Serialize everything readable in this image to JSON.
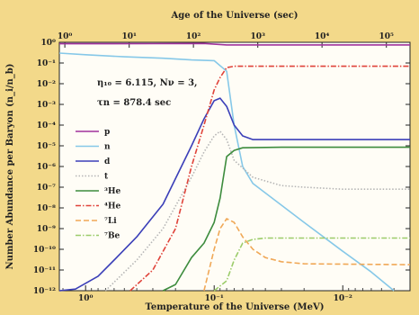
{
  "chart_data": {
    "type": "line",
    "title": "",
    "top_xlabel": "Age of the Universe (sec)",
    "xlabel": "Temperature of the Universe (MeV)",
    "ylabel": "Number Abundance per Baryon (n_i/n_b)",
    "x_scale": "log",
    "y_scale": "log",
    "xlim": [
      1.6,
      0.003
    ],
    "ylim": [
      1e-12,
      1
    ],
    "grid": false,
    "legend_position": "left",
    "bottom_ticks": [
      {
        "value": 1,
        "label": "10⁰"
      },
      {
        "value": 0.1,
        "label": "10⁻¹"
      },
      {
        "value": 0.01,
        "label": "10⁻²"
      }
    ],
    "top_ticks": [
      {
        "value": 1.45,
        "label": "10⁰"
      },
      {
        "value": 0.458,
        "label": "10¹"
      },
      {
        "value": 0.145,
        "label": "10²"
      },
      {
        "value": 0.0458,
        "label": "10³"
      },
      {
        "value": 0.0145,
        "label": "10⁴"
      },
      {
        "value": 0.00458,
        "label": "10⁵"
      }
    ],
    "y_ticks": [
      {
        "value": 1,
        "label": "10⁰"
      },
      {
        "value": 0.1,
        "label": "10⁻¹"
      },
      {
        "value": 0.01,
        "label": "10⁻²"
      },
      {
        "value": 0.001,
        "label": "10⁻³"
      },
      {
        "value": 0.0001,
        "label": "10⁻⁴"
      },
      {
        "value": 1e-05,
        "label": "10⁻⁵"
      },
      {
        "value": 1e-06,
        "label": "10⁻⁶"
      },
      {
        "value": 1e-07,
        "label": "10⁻⁷"
      },
      {
        "value": 1e-08,
        "label": "10⁻⁸"
      },
      {
        "value": 1e-09,
        "label": "10⁻⁹"
      },
      {
        "value": 1e-10,
        "label": "10⁻¹⁰"
      },
      {
        "value": 1e-11,
        "label": "10⁻¹¹"
      },
      {
        "value": 1e-12,
        "label": "10⁻¹²"
      }
    ],
    "annotations": [
      "η₁₀ = 6.115, Nν = 3,",
      "τn = 878.4 sec"
    ],
    "series": [
      {
        "name": "p",
        "color": "#a0329b",
        "dash": "solid",
        "points": [
          [
            1.6,
            0.85
          ],
          [
            0.3,
            0.86
          ],
          [
            0.12,
            0.88
          ],
          [
            0.08,
            0.75
          ],
          [
            0.04,
            0.75
          ],
          [
            0.003,
            0.75
          ]
        ]
      },
      {
        "name": "n",
        "color": "#86c8e8",
        "dash": "solid",
        "points": [
          [
            1.6,
            0.3
          ],
          [
            1.0,
            0.25
          ],
          [
            0.5,
            0.2
          ],
          [
            0.25,
            0.17
          ],
          [
            0.15,
            0.14
          ],
          [
            0.1,
            0.13
          ],
          [
            0.08,
            0.04
          ],
          [
            0.07,
            0.0001
          ],
          [
            0.06,
            1e-06
          ],
          [
            0.05,
            1.5e-07
          ],
          [
            0.02,
            2e-09
          ],
          [
            0.01,
            8e-11
          ],
          [
            0.006,
            8e-12
          ],
          [
            0.004,
            1e-12
          ]
        ]
      },
      {
        "name": "d",
        "color": "#3b3fb8",
        "dash": "solid",
        "points": [
          [
            1.6,
            1e-12
          ],
          [
            1.2,
            1.2e-12
          ],
          [
            0.8,
            5e-12
          ],
          [
            0.6,
            3e-11
          ],
          [
            0.4,
            4e-10
          ],
          [
            0.25,
            1.5e-08
          ],
          [
            0.15,
            1e-05
          ],
          [
            0.12,
            0.0002
          ],
          [
            0.1,
            0.0015
          ],
          [
            0.09,
            0.002
          ],
          [
            0.08,
            0.0008
          ],
          [
            0.07,
            0.0001
          ],
          [
            0.06,
            3e-05
          ],
          [
            0.05,
            2e-05
          ],
          [
            0.03,
            2e-05
          ],
          [
            0.003,
            2e-05
          ]
        ]
      },
      {
        "name": "t",
        "color": "#b5b5b5",
        "dash": "dot",
        "points": [
          [
            0.7,
            1e-12
          ],
          [
            0.4,
            3e-11
          ],
          [
            0.25,
            1e-09
          ],
          [
            0.15,
            3e-07
          ],
          [
            0.12,
            5e-06
          ],
          [
            0.1,
            3e-05
          ],
          [
            0.09,
            5e-05
          ],
          [
            0.08,
            2e-05
          ],
          [
            0.07,
            2e-06
          ],
          [
            0.05,
            3e-07
          ],
          [
            0.03,
            1.2e-07
          ],
          [
            0.02,
            1e-07
          ],
          [
            0.01,
            8e-08
          ],
          [
            0.003,
            8e-08
          ]
        ]
      },
      {
        "name": "³He",
        "color": "#3d8c3d",
        "dash": "solid",
        "points": [
          [
            0.25,
            1e-12
          ],
          [
            0.2,
            2e-12
          ],
          [
            0.15,
            4e-11
          ],
          [
            0.12,
            2e-10
          ],
          [
            0.1,
            2e-09
          ],
          [
            0.09,
            3e-08
          ],
          [
            0.08,
            3e-06
          ],
          [
            0.07,
            6e-06
          ],
          [
            0.06,
            8e-06
          ],
          [
            0.03,
            8.5e-06
          ],
          [
            0.003,
            8.5e-06
          ]
        ]
      },
      {
        "name": "⁴He",
        "color": "#e0433a",
        "dash": "dashdot",
        "points": [
          [
            0.45,
            1e-12
          ],
          [
            0.3,
            1e-11
          ],
          [
            0.2,
            1e-09
          ],
          [
            0.15,
            1e-06
          ],
          [
            0.12,
            0.0001
          ],
          [
            0.1,
            0.005
          ],
          [
            0.09,
            0.02
          ],
          [
            0.08,
            0.06
          ],
          [
            0.07,
            0.07
          ],
          [
            0.003,
            0.07
          ]
        ]
      },
      {
        "name": "⁷Li",
        "color": "#f0a857",
        "dash": "dash",
        "points": [
          [
            0.12,
            1e-12
          ],
          [
            0.1,
            1e-10
          ],
          [
            0.09,
            1e-09
          ],
          [
            0.08,
            3e-09
          ],
          [
            0.07,
            2e-09
          ],
          [
            0.06,
            4e-10
          ],
          [
            0.05,
            1e-10
          ],
          [
            0.04,
            4e-11
          ],
          [
            0.03,
            2.5e-11
          ],
          [
            0.02,
            2e-11
          ],
          [
            0.003,
            1.8e-11
          ]
        ]
      },
      {
        "name": "⁷Be",
        "color": "#9ccc6a",
        "dash": "dashdot",
        "points": [
          [
            0.1,
            1e-12
          ],
          [
            0.08,
            3e-12
          ],
          [
            0.07,
            3e-11
          ],
          [
            0.06,
            2e-10
          ],
          [
            0.05,
            3e-10
          ],
          [
            0.04,
            3.5e-10
          ],
          [
            0.003,
            3.5e-10
          ]
        ]
      }
    ]
  }
}
